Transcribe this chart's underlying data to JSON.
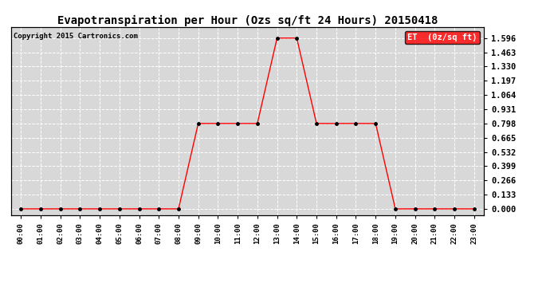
{
  "title": "Evapotranspiration per Hour (Ozs sq/ft 24 Hours) 20150418",
  "copyright": "Copyright 2015 Cartronics.com",
  "legend_label": "ET  (0z/sq ft)",
  "legend_bg": "#ff0000",
  "legend_fg": "#ffffff",
  "line_color": "#ff0000",
  "marker_color": "#000000",
  "background_color": "#d8d8d8",
  "plot_bg": "#d8d8d8",
  "fig_bg": "#ffffff",
  "grid_color": "#ffffff",
  "title_color": "#000000",
  "hours": [
    0,
    1,
    2,
    3,
    4,
    5,
    6,
    7,
    8,
    9,
    10,
    11,
    12,
    13,
    14,
    15,
    16,
    17,
    18,
    19,
    20,
    21,
    22,
    23
  ],
  "values": [
    0.0,
    0.0,
    0.0,
    0.0,
    0.0,
    0.0,
    0.0,
    0.0,
    0.0,
    0.798,
    0.798,
    0.798,
    0.798,
    1.596,
    1.596,
    0.798,
    0.798,
    0.798,
    0.798,
    0.0,
    0.0,
    0.0,
    0.0,
    0.0
  ],
  "yticks": [
    0.0,
    0.133,
    0.266,
    0.399,
    0.532,
    0.665,
    0.798,
    0.931,
    1.064,
    1.197,
    1.33,
    1.463,
    1.596
  ],
  "ylim": [
    -0.06,
    1.7
  ],
  "xlim": [
    -0.5,
    23.5
  ]
}
